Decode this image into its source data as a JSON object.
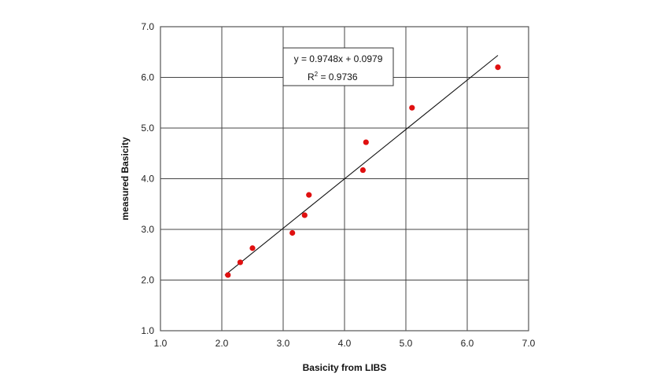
{
  "chart_data": {
    "type": "scatter",
    "title": "",
    "xlabel": "Basicity from LIBS",
    "ylabel": "measured Basicity",
    "xlim": [
      1.0,
      7.0
    ],
    "ylim": [
      1.0,
      7.0
    ],
    "xticks": [
      "1.0",
      "2.0",
      "3.0",
      "4.0",
      "5.0",
      "6.0",
      "7.0"
    ],
    "yticks": [
      "1.0",
      "2.0",
      "3.0",
      "4.0",
      "5.0",
      "6.0",
      "7.0"
    ],
    "grid": true,
    "legend": "none",
    "series": [
      {
        "points": [
          {
            "x": 2.1,
            "y": 2.1
          },
          {
            "x": 2.3,
            "y": 2.35
          },
          {
            "x": 2.5,
            "y": 2.63
          },
          {
            "x": 3.15,
            "y": 2.93
          },
          {
            "x": 3.35,
            "y": 3.28
          },
          {
            "x": 3.42,
            "y": 3.68
          },
          {
            "x": 4.3,
            "y": 4.17
          },
          {
            "x": 4.35,
            "y": 4.72
          },
          {
            "x": 5.1,
            "y": 5.4
          },
          {
            "x": 6.5,
            "y": 6.2
          }
        ],
        "color": "#e01010"
      }
    ],
    "trendline": {
      "slope": 0.9748,
      "intercept": 0.0979,
      "x_range": [
        2.05,
        6.5
      ],
      "color": "#111111"
    },
    "annotation": {
      "equation": "y = 0.9748x + 0.0979",
      "r2_base": "R",
      "r2_sup": "2",
      "r2_value": " = 0.9736"
    }
  }
}
